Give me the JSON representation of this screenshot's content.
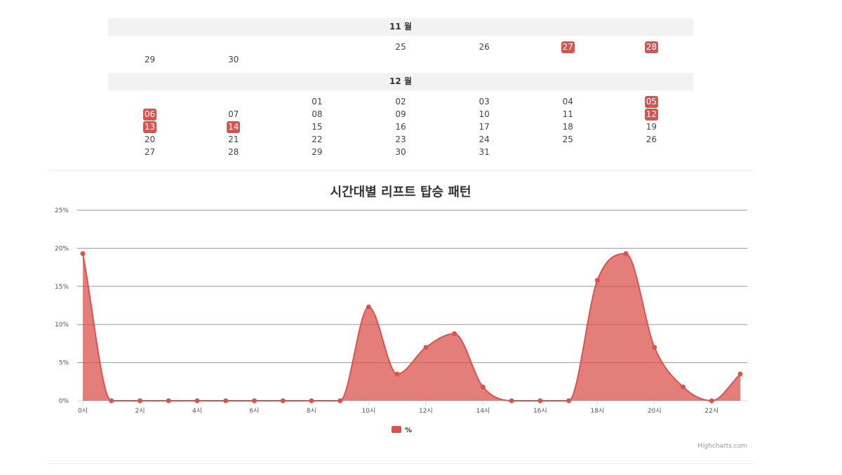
{
  "calendar": {
    "highlight_color": "#d9534f",
    "months": [
      {
        "label": "11 월",
        "weeks": [
          [
            "",
            "",
            "",
            "25",
            "26",
            "27",
            "28"
          ],
          [
            "29",
            "30",
            "",
            "",
            "",
            "",
            ""
          ]
        ],
        "highlighted": [
          "27",
          "28"
        ]
      },
      {
        "label": "12 월",
        "weeks": [
          [
            "",
            "",
            "01",
            "02",
            "03",
            "04",
            "05"
          ],
          [
            "06",
            "07",
            "08",
            "09",
            "10",
            "11",
            "12"
          ],
          [
            "13",
            "14",
            "15",
            "16",
            "17",
            "18",
            "19"
          ],
          [
            "20",
            "21",
            "22",
            "23",
            "24",
            "25",
            "26"
          ],
          [
            "27",
            "28",
            "29",
            "30",
            "31",
            "",
            ""
          ]
        ],
        "highlighted": [
          "05",
          "06",
          "12",
          "13",
          "14"
        ]
      }
    ]
  },
  "chart_data": {
    "type": "area",
    "title": "시간대별 리프트 탑승 패턴",
    "x": [
      0,
      1,
      2,
      3,
      4,
      5,
      6,
      7,
      8,
      9,
      10,
      11,
      12,
      13,
      14,
      15,
      16,
      17,
      18,
      19,
      20,
      21,
      22,
      23
    ],
    "x_tick_labels": [
      "0시",
      "2시",
      "4시",
      "6시",
      "8시",
      "10시",
      "12시",
      "14시",
      "16시",
      "18시",
      "20시",
      "22시"
    ],
    "x_tick_values": [
      0,
      2,
      4,
      6,
      8,
      10,
      12,
      14,
      16,
      18,
      20,
      22
    ],
    "y_tick_labels": [
      "0%",
      "5%",
      "10%",
      "15%",
      "20%",
      "25%"
    ],
    "ylim": [
      0,
      25
    ],
    "series": [
      {
        "name": "%",
        "color": "#d9534f",
        "values": [
          19.3,
          0,
          0,
          0,
          0,
          0,
          0,
          0,
          0,
          0,
          12.3,
          3.5,
          7.0,
          8.8,
          1.8,
          0,
          0,
          0,
          15.8,
          19.3,
          7.0,
          1.8,
          0,
          3.5
        ]
      }
    ],
    "grid": true,
    "legend": "bottom-center",
    "credit": "Highcharts.com"
  }
}
